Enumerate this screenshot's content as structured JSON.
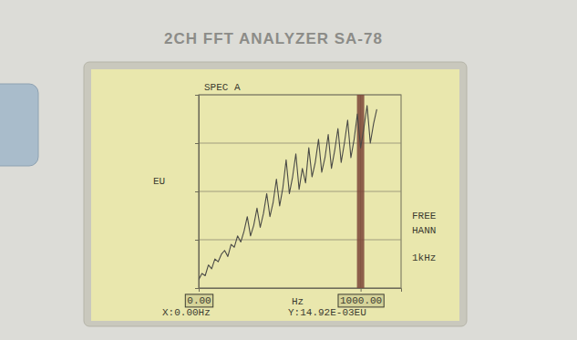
{
  "device": {
    "label": "2CH FFT ANALYZER SA-78"
  },
  "chart_data": {
    "type": "line",
    "title": "SPEC A",
    "x_label": "Hz",
    "y_label": "EU",
    "x": [
      0,
      20,
      40,
      60,
      80,
      100,
      120,
      140,
      160,
      180,
      200,
      220,
      240,
      260,
      280,
      300,
      320,
      340,
      360,
      380,
      400,
      420,
      440,
      460,
      480,
      500,
      520,
      540,
      560,
      580,
      600,
      620,
      640,
      660,
      680,
      700,
      720,
      740,
      760,
      780,
      800,
      820,
      840,
      860,
      880,
      900,
      920,
      940,
      960,
      980,
      1000,
      1020,
      1040,
      1060,
      1080,
      1100
    ],
    "values": [
      0.01492,
      0.02,
      0.018,
      0.03,
      0.025,
      0.04,
      0.035,
      0.05,
      0.06,
      0.045,
      0.08,
      0.07,
      0.12,
      0.09,
      0.15,
      0.3,
      0.12,
      0.2,
      0.45,
      0.18,
      0.35,
      0.9,
      0.3,
      0.6,
      1.8,
      0.5,
      1.2,
      4.5,
      0.9,
      2.0,
      6.0,
      1.1,
      3.0,
      1.5,
      8.0,
      2.0,
      4.0,
      12,
      2.5,
      5.0,
      15,
      3.0,
      7.0,
      20,
      4.0,
      10,
      30,
      5.0,
      12,
      40,
      8.0,
      20,
      60,
      10,
      25,
      50
    ],
    "color": "#4a4a46",
    "xlim": [
      0,
      1250
    ],
    "xticks": [
      {
        "value": 0,
        "label": "0.00"
      },
      {
        "value": 1000,
        "label": "1000.00"
      }
    ],
    "ylim": [
      0.01,
      100
    ],
    "yticks": [
      0.01,
      0.1,
      1,
      10,
      100
    ],
    "log": "y",
    "grid": true,
    "tick_labels": "x",
    "annotations": [
      "FREE",
      "HANN",
      "1kHz",
      "X:0.00Hz",
      "Y:14.92E-03EU"
    ]
  }
}
